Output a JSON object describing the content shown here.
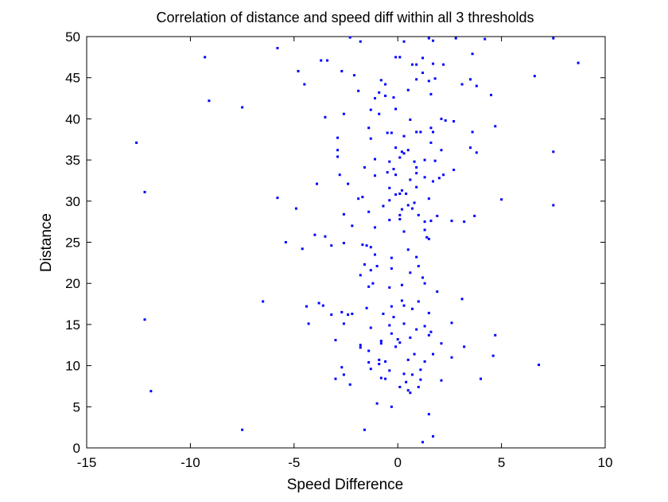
{
  "chart_data": {
    "type": "scatter",
    "title": "Correlation of distance and speed diff within all 3 thresholds",
    "xlabel": "Speed Difference",
    "ylabel": "Distance",
    "xlim": [
      -15,
      10
    ],
    "ylim": [
      0,
      50
    ],
    "xticks": [
      -15,
      -10,
      -5,
      0,
      5,
      10
    ],
    "yticks": [
      0,
      5,
      10,
      15,
      20,
      25,
      30,
      35,
      40,
      45,
      50
    ],
    "xtick_labels": [
      "-15",
      "-10",
      "-5",
      "0",
      "5",
      "10"
    ],
    "ytick_labels": [
      "0",
      "5",
      "10",
      "15",
      "20",
      "25",
      "30",
      "35",
      "40",
      "45",
      "50"
    ],
    "grid": false,
    "legend": false,
    "marker_color": "#0000ff",
    "series": [
      {
        "points": [
          [
            -2.3,
            49.9
          ],
          [
            -1.8,
            49.4
          ],
          [
            0.3,
            49.4
          ],
          [
            1.5,
            49.8
          ],
          [
            1.7,
            49.5
          ],
          [
            2.8,
            49.8
          ],
          [
            4.2,
            49.7
          ],
          [
            7.5,
            49.8
          ],
          [
            -5.8,
            48.6
          ],
          [
            -9.3,
            47.5
          ],
          [
            -3.7,
            47.1
          ],
          [
            -3.4,
            47.1
          ],
          [
            -0.1,
            47.5
          ],
          [
            0.1,
            47.5
          ],
          [
            1.2,
            47.4
          ],
          [
            3.6,
            47.9
          ],
          [
            -4.8,
            45.8
          ],
          [
            -2.7,
            45.8
          ],
          [
            -2.1,
            45.3
          ],
          [
            0.7,
            46.6
          ],
          [
            0.9,
            46.6
          ],
          [
            1.2,
            45.6
          ],
          [
            1.7,
            46.7
          ],
          [
            2.2,
            46.6
          ],
          [
            -0.8,
            44.7
          ],
          [
            -0.6,
            44.2
          ],
          [
            0.9,
            44.8
          ],
          [
            1.5,
            44.6
          ],
          [
            1.8,
            44.9
          ],
          [
            3.1,
            44.2
          ],
          [
            3.5,
            44.8
          ],
          [
            3.8,
            44.0
          ],
          [
            6.6,
            45.2
          ],
          [
            8.7,
            46.8
          ],
          [
            -4.5,
            44.2
          ],
          [
            -1.9,
            43.4
          ],
          [
            -0.9,
            43.2
          ],
          [
            -1.1,
            42.5
          ],
          [
            -0.6,
            42.8
          ],
          [
            -0.2,
            42.6
          ],
          [
            0.5,
            43.5
          ],
          [
            1.6,
            43.0
          ],
          [
            4.5,
            42.9
          ],
          [
            -9.1,
            42.2
          ],
          [
            -7.5,
            41.4
          ],
          [
            -1.3,
            41.1
          ],
          [
            -0.9,
            40.6
          ],
          [
            -0.1,
            41.2
          ],
          [
            2.1,
            40.0
          ],
          [
            2.3,
            39.8
          ],
          [
            -3.5,
            40.2
          ],
          [
            -2.6,
            40.6
          ],
          [
            0.6,
            39.9
          ],
          [
            1.6,
            38.9
          ],
          [
            1.7,
            38.4
          ],
          [
            2.7,
            39.7
          ],
          [
            4.7,
            39.1
          ],
          [
            -1.4,
            38.9
          ],
          [
            -0.5,
            38.3
          ],
          [
            -0.3,
            38.3
          ],
          [
            0.9,
            38.4
          ],
          [
            1.1,
            38.4
          ],
          [
            3.6,
            38.4
          ],
          [
            -12.6,
            37.1
          ],
          [
            -2.9,
            37.7
          ],
          [
            -1.3,
            37.6
          ],
          [
            0.3,
            37.9
          ],
          [
            1.6,
            37.1
          ],
          [
            -2.9,
            36.2
          ],
          [
            -0.1,
            36.5
          ],
          [
            0.2,
            36.0
          ],
          [
            0.5,
            36.2
          ],
          [
            2.1,
            36.2
          ],
          [
            3.5,
            36.5
          ],
          [
            7.5,
            36.0
          ],
          [
            -2.9,
            35.4
          ],
          [
            -1.1,
            35.1
          ],
          [
            0.1,
            35.3
          ],
          [
            0.3,
            35.8
          ],
          [
            -0.4,
            34.8
          ],
          [
            0.8,
            34.8
          ],
          [
            1.3,
            35.0
          ],
          [
            1.8,
            34.9
          ],
          [
            3.8,
            35.9
          ],
          [
            -1.6,
            34.1
          ],
          [
            -0.2,
            33.9
          ],
          [
            0.9,
            34.1
          ],
          [
            -0.5,
            33.5
          ],
          [
            -0.1,
            33.2
          ],
          [
            0.9,
            33.4
          ],
          [
            2.2,
            33.2
          ],
          [
            2.7,
            33.8
          ],
          [
            -2.8,
            33.2
          ],
          [
            -1.1,
            33.1
          ],
          [
            0.6,
            32.6
          ],
          [
            1.3,
            32.9
          ],
          [
            1.7,
            32.4
          ],
          [
            2.0,
            32.8
          ],
          [
            -3.9,
            32.1
          ],
          [
            -2.4,
            32.1
          ],
          [
            -0.4,
            31.6
          ],
          [
            0.2,
            31.3
          ],
          [
            0.9,
            31.7
          ],
          [
            -12.2,
            31.1
          ],
          [
            -0.1,
            30.8
          ],
          [
            0.1,
            30.9
          ],
          [
            0.4,
            30.9
          ],
          [
            1.5,
            30.3
          ],
          [
            -5.8,
            30.4
          ],
          [
            -1.9,
            30.3
          ],
          [
            -1.7,
            30.5
          ],
          [
            -0.4,
            30.1
          ],
          [
            0.8,
            29.8
          ],
          [
            5.0,
            30.2
          ],
          [
            0.5,
            29.5
          ],
          [
            7.5,
            29.5
          ],
          [
            -0.7,
            29.4
          ],
          [
            0.2,
            29.0
          ],
          [
            0.7,
            29.1
          ],
          [
            1.0,
            28.3
          ],
          [
            -4.9,
            29.1
          ],
          [
            -2.6,
            28.4
          ],
          [
            -1.4,
            28.7
          ],
          [
            0.1,
            28.3
          ],
          [
            1.9,
            28.2
          ],
          [
            3.7,
            28.2
          ],
          [
            -0.4,
            27.7
          ],
          [
            0.1,
            27.8
          ],
          [
            1.3,
            27.5
          ],
          [
            1.6,
            27.6
          ],
          [
            2.6,
            27.6
          ],
          [
            3.2,
            27.5
          ],
          [
            -2.2,
            27.0
          ],
          [
            -1.1,
            26.8
          ],
          [
            0.3,
            26.3
          ],
          [
            1.3,
            26.5
          ],
          [
            -4.0,
            25.9
          ],
          [
            -3.5,
            25.7
          ],
          [
            1.4,
            25.6
          ],
          [
            -5.4,
            25.0
          ],
          [
            -4.6,
            24.2
          ],
          [
            -3.2,
            24.6
          ],
          [
            -2.6,
            24.9
          ],
          [
            -1.7,
            24.7
          ],
          [
            -1.5,
            24.6
          ],
          [
            -1.3,
            24.4
          ],
          [
            0.5,
            24.1
          ],
          [
            1.5,
            25.4
          ],
          [
            -1.1,
            23.5
          ],
          [
            -0.3,
            23.1
          ],
          [
            0.9,
            23.2
          ],
          [
            -1.6,
            22.3
          ],
          [
            -1.0,
            22.1
          ],
          [
            1.0,
            22.1
          ],
          [
            -1.3,
            21.6
          ],
          [
            -0.3,
            21.8
          ],
          [
            0.6,
            21.3
          ],
          [
            1.2,
            20.7
          ],
          [
            -1.8,
            21.0
          ],
          [
            -1.2,
            20.0
          ],
          [
            1.3,
            20.0
          ],
          [
            -0.4,
            19.5
          ],
          [
            0.2,
            19.8
          ],
          [
            -1.4,
            19.6
          ],
          [
            1.9,
            19.0
          ],
          [
            -6.5,
            17.8
          ],
          [
            -3.8,
            17.6
          ],
          [
            -3.6,
            17.3
          ],
          [
            -4.4,
            17.2
          ],
          [
            -1.5,
            17.0
          ],
          [
            -0.3,
            17.2
          ],
          [
            0.2,
            17.9
          ],
          [
            1.0,
            17.8
          ],
          [
            3.1,
            18.1
          ],
          [
            0.3,
            17.3
          ],
          [
            0.7,
            16.9
          ],
          [
            -2.7,
            16.5
          ],
          [
            -2.4,
            16.2
          ],
          [
            -2.2,
            16.3
          ],
          [
            -3.2,
            16.2
          ],
          [
            -0.7,
            16.3
          ],
          [
            -0.2,
            15.9
          ],
          [
            -12.2,
            15.6
          ],
          [
            -4.3,
            15.1
          ],
          [
            -2.6,
            15.1
          ],
          [
            1.5,
            16.4
          ],
          [
            2.6,
            15.2
          ],
          [
            -1.3,
            14.6
          ],
          [
            -0.4,
            14.9
          ],
          [
            0.3,
            15.1
          ],
          [
            1.3,
            14.8
          ],
          [
            -0.3,
            13.9
          ],
          [
            0.9,
            14.4
          ],
          [
            1.6,
            14.1
          ],
          [
            4.7,
            13.7
          ],
          [
            -0.8,
            13.0
          ],
          [
            0.0,
            13.2
          ],
          [
            0.6,
            13.4
          ],
          [
            1.5,
            13.7
          ],
          [
            -3.0,
            13.1
          ],
          [
            -1.8,
            12.5
          ],
          [
            -0.8,
            12.7
          ],
          [
            0.1,
            12.8
          ],
          [
            2.1,
            12.7
          ],
          [
            3.2,
            12.3
          ],
          [
            -1.8,
            12.2
          ],
          [
            -0.1,
            12.3
          ],
          [
            -1.4,
            11.8
          ],
          [
            0.8,
            11.4
          ],
          [
            1.7,
            11.4
          ],
          [
            2.6,
            11.0
          ],
          [
            4.6,
            11.2
          ],
          [
            -1.4,
            10.4
          ],
          [
            -0.9,
            10.7
          ],
          [
            -0.6,
            10.5
          ],
          [
            0.5,
            10.7
          ],
          [
            1.3,
            10.5
          ],
          [
            6.8,
            10.1
          ],
          [
            -0.9,
            10.2
          ],
          [
            -1.3,
            9.6
          ],
          [
            -2.7,
            9.8
          ],
          [
            -0.4,
            9.4
          ],
          [
            1.1,
            9.5
          ],
          [
            -2.6,
            8.9
          ],
          [
            -0.8,
            8.5
          ],
          [
            -0.6,
            8.4
          ],
          [
            0.3,
            9.0
          ],
          [
            0.7,
            8.9
          ],
          [
            1.1,
            8.3
          ],
          [
            -3.0,
            8.4
          ],
          [
            0.4,
            8.0
          ],
          [
            2.1,
            8.2
          ],
          [
            4.0,
            8.4
          ],
          [
            -2.3,
            7.7
          ],
          [
            0.1,
            7.4
          ],
          [
            0.5,
            7.0
          ],
          [
            0.6,
            6.7
          ],
          [
            1.0,
            7.4
          ],
          [
            -11.9,
            6.9
          ],
          [
            -1.0,
            5.4
          ],
          [
            -0.3,
            5.0
          ],
          [
            1.5,
            4.1
          ],
          [
            -7.5,
            2.2
          ],
          [
            -1.6,
            2.2
          ],
          [
            1.7,
            1.4
          ],
          [
            1.2,
            0.7
          ]
        ]
      }
    ]
  }
}
